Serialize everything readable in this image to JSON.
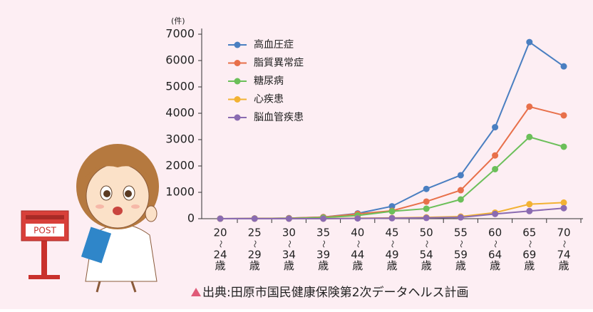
{
  "post_sign": "POST",
  "chart_data": {
    "type": "line",
    "y_unit": "(件)",
    "source": "出典:田原市国民健康保険第2次データヘルス計画",
    "categories": [
      [
        "20",
        "〜",
        "24",
        "歳"
      ],
      [
        "25",
        "〜",
        "29",
        "歳"
      ],
      [
        "30",
        "〜",
        "34",
        "歳"
      ],
      [
        "35",
        "〜",
        "39",
        "歳"
      ],
      [
        "40",
        "〜",
        "44",
        "歳"
      ],
      [
        "45",
        "〜",
        "49",
        "歳"
      ],
      [
        "50",
        "〜",
        "54",
        "歳"
      ],
      [
        "55",
        "〜",
        "59",
        "歳"
      ],
      [
        "60",
        "〜",
        "64",
        "歳"
      ],
      [
        "65",
        "〜",
        "69",
        "歳"
      ],
      [
        "70",
        "〜",
        "74",
        "歳"
      ]
    ],
    "series": [
      {
        "name": "高血圧症",
        "color": "#4a7fc1",
        "values": [
          0,
          10,
          20,
          60,
          200,
          470,
          1130,
          1650,
          3470,
          6700,
          5780
        ]
      },
      {
        "name": "脂質異常症",
        "color": "#e8704a",
        "values": [
          0,
          10,
          20,
          60,
          180,
          300,
          650,
          1080,
          2400,
          4250,
          3920
        ]
      },
      {
        "name": "糖尿病",
        "color": "#6bbf59",
        "values": [
          0,
          5,
          10,
          40,
          120,
          280,
          380,
          730,
          1880,
          3100,
          2730
        ]
      },
      {
        "name": "心疾患",
        "color": "#f2b233",
        "values": [
          0,
          0,
          0,
          0,
          20,
          30,
          50,
          80,
          230,
          550,
          610
        ]
      },
      {
        "name": "脳血管疾患",
        "color": "#8a6bb1",
        "values": [
          0,
          0,
          0,
          0,
          10,
          20,
          30,
          50,
          180,
          290,
          400
        ]
      }
    ],
    "ylim": [
      0,
      7000
    ],
    "yticks": [
      0,
      1000,
      2000,
      3000,
      4000,
      5000,
      6000,
      7000
    ],
    "grid": false,
    "legend": "upper-left"
  }
}
